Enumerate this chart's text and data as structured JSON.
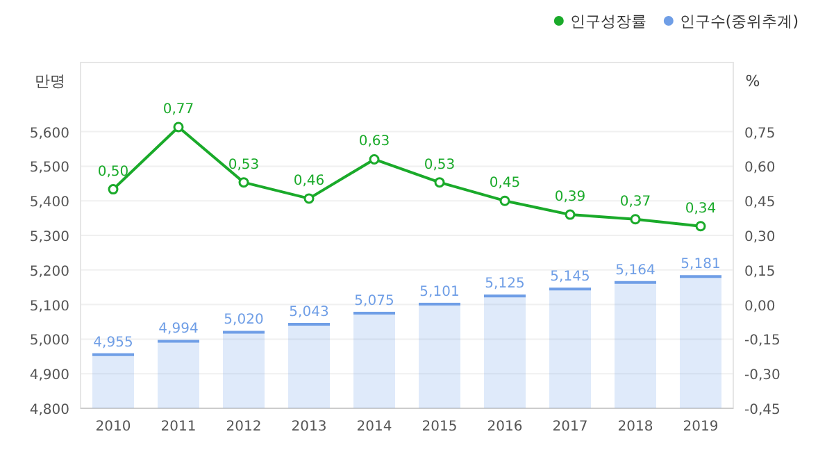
{
  "chart_data": {
    "type": "bar",
    "ylabel": "만명",
    "y2label": "%",
    "legend": "top right",
    "grid": "y",
    "categories": [
      "2010",
      "2011",
      "2012",
      "2013",
      "2014",
      "2015",
      "2016",
      "2017",
      "2018",
      "2019"
    ],
    "series": [
      {
        "name": "인구성장률",
        "type": "line",
        "axis": "y2",
        "marker": "circle",
        "color": "#1aaa2a",
        "values": [
          0.5,
          0.77,
          0.53,
          0.46,
          0.63,
          0.53,
          0.45,
          0.39,
          0.37,
          0.34
        ],
        "value_labels": [
          "0,50",
          "0,77",
          "0,53",
          "0,46",
          "0,63",
          "0,53",
          "0,45",
          "0,39",
          "0,37",
          "0,34"
        ]
      },
      {
        "name": "인구수(중위추계)",
        "color": "#6f9ee6",
        "values": [
          4955,
          4994,
          5020,
          5043,
          5075,
          5101,
          5125,
          5145,
          5164,
          5181
        ],
        "value_labels": [
          "4,955",
          "4,994",
          "5,020",
          "5,043",
          "5,075",
          "5,101",
          "5,125",
          "5,145",
          "5,164",
          "5,181"
        ]
      }
    ],
    "ylim": [
      4800,
      5800
    ],
    "yticks": [
      {
        "value": 4800,
        "label": "4,800"
      },
      {
        "value": 4900,
        "label": "4,900"
      },
      {
        "value": 5000,
        "label": "5,000"
      },
      {
        "value": 5100,
        "label": "5,100"
      },
      {
        "value": 5200,
        "label": "5,200"
      },
      {
        "value": 5300,
        "label": "5,300"
      },
      {
        "value": 5400,
        "label": "5,400"
      },
      {
        "value": 5500,
        "label": "5,500"
      },
      {
        "value": 5600,
        "label": "5,600"
      }
    ],
    "y2lim": [
      -0.45,
      1.05
    ],
    "y2ticks": [
      {
        "value": -0.45,
        "label": "-0,45"
      },
      {
        "value": -0.3,
        "label": "-0,30"
      },
      {
        "value": -0.15,
        "label": "-0,15"
      },
      {
        "value": 0,
        "label": "0,00"
      },
      {
        "value": 0.15,
        "label": "0,15"
      },
      {
        "value": 0.3,
        "label": "0,30"
      },
      {
        "value": 0.45,
        "label": "0,45"
      },
      {
        "value": 0.6,
        "label": "0,60"
      },
      {
        "value": 0.75,
        "label": "0,75"
      }
    ]
  }
}
